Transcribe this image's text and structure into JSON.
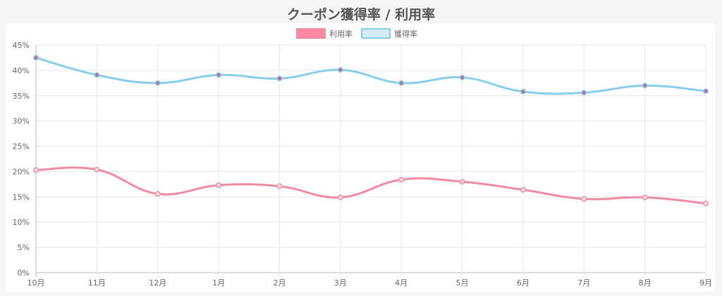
{
  "chart_data": {
    "type": "line",
    "title": "クーポン獲得率 / 利用率",
    "categories": [
      "10月",
      "11月",
      "12月",
      "1月",
      "2月",
      "3月",
      "4月",
      "5月",
      "6月",
      "7月",
      "8月",
      "9月"
    ],
    "y_ticks": [
      "0%",
      "5%",
      "10%",
      "15%",
      "20%",
      "25%",
      "30%",
      "35%",
      "40%",
      "45%"
    ],
    "ylim": [
      0,
      45
    ],
    "grid": true,
    "legend_position": "top-center",
    "series": [
      {
        "name": "利用率",
        "values": [
          20.3,
          20.4,
          15.6,
          17.3,
          17.1,
          14.9,
          18.4,
          18.0,
          16.4,
          14.6,
          14.9,
          13.7
        ],
        "line_color": "#f28aa3",
        "fill_color": "#ff88a5",
        "point_fill": "#f7e3e8"
      },
      {
        "name": "獲得率",
        "values": [
          42.5,
          39.1,
          37.5,
          39.1,
          38.4,
          40.1,
          37.5,
          38.6,
          35.8,
          35.6,
          37.0,
          35.9
        ],
        "line_color": "#87ceeb",
        "fill_color": "#d4ecf5",
        "point_fill": "#c3699e"
      }
    ]
  }
}
